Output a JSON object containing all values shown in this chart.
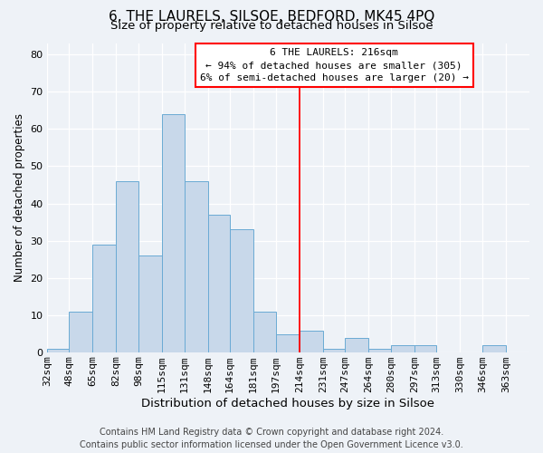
{
  "title": "6, THE LAURELS, SILSOE, BEDFORD, MK45 4PQ",
  "subtitle": "Size of property relative to detached houses in Silsoe",
  "xlabel": "Distribution of detached houses by size in Silsoe",
  "ylabel": "Number of detached properties",
  "bin_labels": [
    "32sqm",
    "48sqm",
    "65sqm",
    "82sqm",
    "98sqm",
    "115sqm",
    "131sqm",
    "148sqm",
    "164sqm",
    "181sqm",
    "197sqm",
    "214sqm",
    "231sqm",
    "247sqm",
    "264sqm",
    "280sqm",
    "297sqm",
    "313sqm",
    "330sqm",
    "346sqm",
    "363sqm"
  ],
  "bin_edges": [
    32,
    48,
    65,
    82,
    98,
    115,
    131,
    148,
    164,
    181,
    197,
    214,
    231,
    247,
    264,
    280,
    297,
    313,
    330,
    346,
    363,
    380
  ],
  "counts": [
    1,
    11,
    29,
    46,
    26,
    64,
    46,
    37,
    33,
    11,
    5,
    6,
    1,
    4,
    1,
    2,
    2,
    0,
    0,
    2,
    0
  ],
  "bar_color": "#c8d8ea",
  "bar_edge_color": "#6aaad4",
  "vline_x": 214,
  "vline_color": "red",
  "annotation_title": "6 THE LAURELS: 216sqm",
  "annotation_line1": "← 94% of detached houses are smaller (305)",
  "annotation_line2": "6% of semi-detached houses are larger (20) →",
  "annotation_box_color": "white",
  "annotation_box_edge": "red",
  "ylim": [
    0,
    83
  ],
  "yticks": [
    0,
    10,
    20,
    30,
    40,
    50,
    60,
    70,
    80
  ],
  "background_color": "#eef2f7",
  "plot_bg_color": "#eef2f7",
  "grid_color": "white",
  "footer1": "Contains HM Land Registry data © Crown copyright and database right 2024.",
  "footer2": "Contains public sector information licensed under the Open Government Licence v3.0.",
  "title_fontsize": 11,
  "subtitle_fontsize": 9.5,
  "xlabel_fontsize": 9.5,
  "ylabel_fontsize": 8.5,
  "tick_fontsize": 8,
  "annot_fontsize": 8,
  "footer_fontsize": 7
}
